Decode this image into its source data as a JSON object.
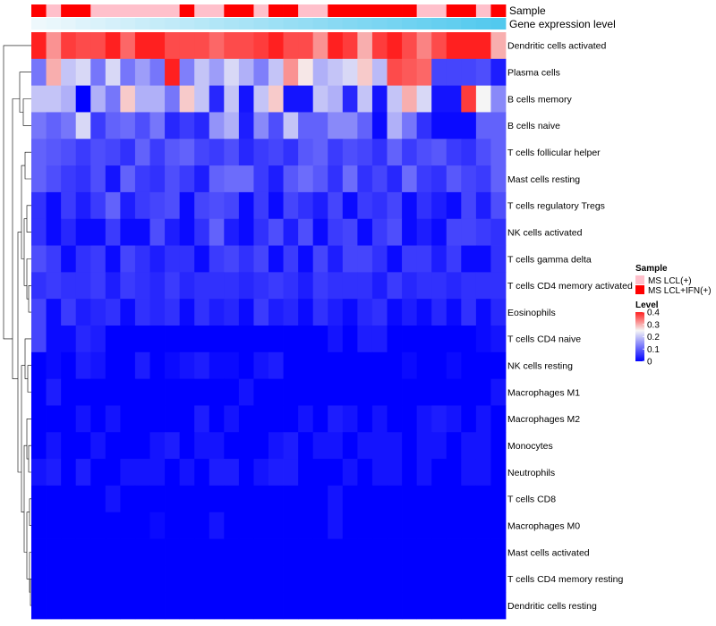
{
  "chart_data": {
    "type": "heatmap",
    "title": "",
    "annotations": [
      {
        "name": "Sample",
        "legend_title": "Sample",
        "legend_entries": [
          {
            "label": "MS LCL(+)",
            "color": "#ffc0cb"
          },
          {
            "label": "MS LCL+IFN(+)",
            "color": "#ff0000"
          }
        ],
        "values": [
          1,
          0,
          1,
          1,
          0,
          0,
          0,
          0,
          0,
          0,
          1,
          0,
          0,
          1,
          1,
          0,
          1,
          1,
          0,
          0,
          1,
          1,
          1,
          1,
          1,
          1,
          0,
          0,
          1,
          1,
          0,
          1
        ]
      },
      {
        "name": "Gene expression level",
        "color_low": "#eef8fc",
        "color_high": "#52c9ee",
        "values": [
          0.0,
          0.03,
          0.06,
          0.1,
          0.13,
          0.16,
          0.19,
          0.23,
          0.26,
          0.29,
          0.32,
          0.35,
          0.39,
          0.42,
          0.45,
          0.48,
          0.52,
          0.55,
          0.58,
          0.61,
          0.65,
          0.68,
          0.71,
          0.74,
          0.77,
          0.81,
          0.84,
          0.87,
          0.9,
          0.94,
          0.97,
          1.0
        ]
      }
    ],
    "rows": [
      "Dendritic cells activated",
      "Plasma cells",
      "B cells memory",
      "B cells naive",
      "T cells follicular helper",
      "Mast cells resting",
      "T cells regulatory  Tregs",
      "NK cells activated",
      "T cells gamma delta",
      "T cells CD4 memory activated",
      "Eosinophils",
      "T cells CD4 naive",
      "NK cells resting",
      "Macrophages M1",
      "Macrophages M2",
      "Monocytes",
      "Neutrophils",
      "T cells CD8",
      "Macrophages M0",
      "Mast cells activated",
      "T cells CD4 memory resting",
      "Dendritic cells resting"
    ],
    "values": [
      [
        0.4,
        0.32,
        0.38,
        0.37,
        0.37,
        0.4,
        0.35,
        0.4,
        0.4,
        0.37,
        0.37,
        0.37,
        0.35,
        0.37,
        0.37,
        0.38,
        0.4,
        0.37,
        0.37,
        0.32,
        0.4,
        0.38,
        0.3,
        0.38,
        0.4,
        0.37,
        0.33,
        0.37,
        0.4,
        0.4,
        0.4,
        0.3
      ],
      [
        0.12,
        0.3,
        0.2,
        0.22,
        0.12,
        0.22,
        0.12,
        0.16,
        0.12,
        0.4,
        0.13,
        0.2,
        0.16,
        0.22,
        0.18,
        0.13,
        0.2,
        0.32,
        0.26,
        0.18,
        0.2,
        0.22,
        0.28,
        0.19,
        0.37,
        0.36,
        0.35,
        0.07,
        0.07,
        0.07,
        0.08,
        0.03
      ],
      [
        0.2,
        0.2,
        0.18,
        0.0,
        0.18,
        0.12,
        0.28,
        0.18,
        0.18,
        0.12,
        0.28,
        0.2,
        0.04,
        0.2,
        0.02,
        0.2,
        0.28,
        0.02,
        0.02,
        0.2,
        0.18,
        0.04,
        0.2,
        0.02,
        0.2,
        0.3,
        0.22,
        0.02,
        0.02,
        0.38,
        0.25,
        0.14
      ],
      [
        0.12,
        0.1,
        0.12,
        0.22,
        0.06,
        0.1,
        0.11,
        0.08,
        0.12,
        0.04,
        0.06,
        0.04,
        0.15,
        0.18,
        0.03,
        0.14,
        0.08,
        0.2,
        0.1,
        0.1,
        0.14,
        0.14,
        0.1,
        0.01,
        0.18,
        0.12,
        0.05,
        0.01,
        0.01,
        0.01,
        0.1,
        0.1
      ],
      [
        0.1,
        0.09,
        0.08,
        0.06,
        0.08,
        0.07,
        0.05,
        0.1,
        0.06,
        0.09,
        0.1,
        0.07,
        0.06,
        0.08,
        0.04,
        0.06,
        0.07,
        0.05,
        0.09,
        0.1,
        0.06,
        0.08,
        0.07,
        0.05,
        0.1,
        0.06,
        0.08,
        0.09,
        0.06,
        0.05,
        0.08,
        0.1
      ],
      [
        0.1,
        0.08,
        0.06,
        0.05,
        0.08,
        0.02,
        0.1,
        0.06,
        0.05,
        0.08,
        0.06,
        0.03,
        0.1,
        0.11,
        0.11,
        0.06,
        0.03,
        0.09,
        0.11,
        0.09,
        0.05,
        0.11,
        0.05,
        0.07,
        0.04,
        0.11,
        0.06,
        0.05,
        0.09,
        0.07,
        0.06,
        0.1
      ],
      [
        0.05,
        0.01,
        0.06,
        0.03,
        0.06,
        0.1,
        0.03,
        0.06,
        0.07,
        0.08,
        0.01,
        0.07,
        0.08,
        0.07,
        0.01,
        0.06,
        0.01,
        0.07,
        0.05,
        0.03,
        0.07,
        0.01,
        0.06,
        0.05,
        0.07,
        0.01,
        0.05,
        0.03,
        0.01,
        0.07,
        0.03,
        0.08
      ],
      [
        0.05,
        0.01,
        0.04,
        0.01,
        0.01,
        0.06,
        0.01,
        0.01,
        0.08,
        0.03,
        0.01,
        0.05,
        0.1,
        0.03,
        0.01,
        0.05,
        0.08,
        0.03,
        0.08,
        0.01,
        0.06,
        0.07,
        0.01,
        0.06,
        0.08,
        0.01,
        0.03,
        0.01,
        0.07,
        0.07,
        0.06,
        0.05
      ],
      [
        0.08,
        0.06,
        0.01,
        0.05,
        0.06,
        0.01,
        0.07,
        0.05,
        0.03,
        0.05,
        0.05,
        0.01,
        0.06,
        0.07,
        0.05,
        0.07,
        0.01,
        0.06,
        0.01,
        0.07,
        0.03,
        0.07,
        0.07,
        0.05,
        0.01,
        0.06,
        0.06,
        0.03,
        0.06,
        0.01,
        0.01,
        0.05
      ],
      [
        0.05,
        0.06,
        0.05,
        0.05,
        0.06,
        0.03,
        0.06,
        0.05,
        0.04,
        0.06,
        0.04,
        0.05,
        0.05,
        0.05,
        0.04,
        0.05,
        0.06,
        0.05,
        0.03,
        0.06,
        0.05,
        0.05,
        0.05,
        0.03,
        0.06,
        0.04,
        0.05,
        0.05,
        0.04,
        0.05,
        0.05,
        0.05
      ],
      [
        0.07,
        0.01,
        0.06,
        0.03,
        0.04,
        0.05,
        0.01,
        0.05,
        0.04,
        0.05,
        0.01,
        0.05,
        0.03,
        0.04,
        0.01,
        0.06,
        0.03,
        0.04,
        0.01,
        0.05,
        0.03,
        0.01,
        0.04,
        0.05,
        0.01,
        0.03,
        0.01,
        0.04,
        0.01,
        0.05,
        0.01,
        0.04
      ],
      [
        0.07,
        0.01,
        0.01,
        0.04,
        0.03,
        0.0,
        0.0,
        0.0,
        0.0,
        0.0,
        0.0,
        0.0,
        0.0,
        0.0,
        0.0,
        0.0,
        0.0,
        0.0,
        0.0,
        0.0,
        0.02,
        0.0,
        0.03,
        0.03,
        0.0,
        0.0,
        0.0,
        0.0,
        0.0,
        0.0,
        0.01,
        0.02
      ],
      [
        0.0,
        0.01,
        0.0,
        0.03,
        0.02,
        0.0,
        0.0,
        0.03,
        0.0,
        0.01,
        0.02,
        0.03,
        0.01,
        0.01,
        0.0,
        0.02,
        0.03,
        0.0,
        0.0,
        0.0,
        0.0,
        0.0,
        0.0,
        0.0,
        0.0,
        0.01,
        0.0,
        0.0,
        0.01,
        0.0,
        0.0,
        0.0
      ],
      [
        0.0,
        0.03,
        0.0,
        0.0,
        0.0,
        0.0,
        0.0,
        0.0,
        0.0,
        0.0,
        0.0,
        0.0,
        0.0,
        0.0,
        0.02,
        0.0,
        0.0,
        0.0,
        0.0,
        0.0,
        0.0,
        0.0,
        0.0,
        0.0,
        0.0,
        0.0,
        0.0,
        0.0,
        0.0,
        0.0,
        0.0,
        0.02
      ],
      [
        0.0,
        0.0,
        0.0,
        0.02,
        0.0,
        0.02,
        0.0,
        0.0,
        0.0,
        0.0,
        0.0,
        0.03,
        0.0,
        0.02,
        0.0,
        0.0,
        0.0,
        0.0,
        0.02,
        0.0,
        0.03,
        0.02,
        0.0,
        0.02,
        0.0,
        0.0,
        0.02,
        0.03,
        0.02,
        0.0,
        0.02,
        0.0
      ],
      [
        0.0,
        0.02,
        0.0,
        0.0,
        0.02,
        0.0,
        0.0,
        0.0,
        0.02,
        0.03,
        0.0,
        0.02,
        0.02,
        0.0,
        0.0,
        0.0,
        0.02,
        0.03,
        0.0,
        0.02,
        0.02,
        0.0,
        0.02,
        0.02,
        0.02,
        0.0,
        0.02,
        0.02,
        0.0,
        0.02,
        0.02,
        0.0
      ],
      [
        0.02,
        0.03,
        0.0,
        0.03,
        0.0,
        0.0,
        0.02,
        0.02,
        0.02,
        0.0,
        0.02,
        0.0,
        0.03,
        0.03,
        0.0,
        0.02,
        0.03,
        0.03,
        0.0,
        0.0,
        0.0,
        0.02,
        0.0,
        0.02,
        0.02,
        0.0,
        0.02,
        0.0,
        0.0,
        0.02,
        0.02,
        0.0
      ],
      [
        0.0,
        0.0,
        0.0,
        0.0,
        0.0,
        0.02,
        0.0,
        0.0,
        0.0,
        0.0,
        0.0,
        0.0,
        0.0,
        0.0,
        0.0,
        0.0,
        0.0,
        0.0,
        0.0,
        0.0,
        0.02,
        0.0,
        0.0,
        0.0,
        0.0,
        0.0,
        0.0,
        0.0,
        0.0,
        0.0,
        0.0,
        0.0
      ],
      [
        0.0,
        0.0,
        0.0,
        0.0,
        0.0,
        0.0,
        0.0,
        0.0,
        0.01,
        0.0,
        0.0,
        0.0,
        0.02,
        0.0,
        0.0,
        0.0,
        0.0,
        0.0,
        0.0,
        0.0,
        0.02,
        0.0,
        0.0,
        0.0,
        0.0,
        0.0,
        0.0,
        0.0,
        0.0,
        0.0,
        0.0,
        0.0
      ],
      [
        0.0,
        0.0,
        0.0,
        0.0,
        0.0,
        0.0,
        0.0,
        0.0,
        0.0,
        0.0,
        0.0,
        0.0,
        0.0,
        0.0,
        0.0,
        0.0,
        0.0,
        0.0,
        0.0,
        0.0,
        0.0,
        0.0,
        0.0,
        0.0,
        0.0,
        0.0,
        0.0,
        0.0,
        0.0,
        0.0,
        0.0,
        0.0
      ],
      [
        0.0,
        0.0,
        0.0,
        0.0,
        0.0,
        0.0,
        0.0,
        0.0,
        0.0,
        0.0,
        0.0,
        0.0,
        0.0,
        0.0,
        0.0,
        0.0,
        0.0,
        0.0,
        0.0,
        0.0,
        0.0,
        0.0,
        0.0,
        0.0,
        0.0,
        0.0,
        0.0,
        0.0,
        0.0,
        0.0,
        0.0,
        0.0
      ],
      [
        0.0,
        0.0,
        0.0,
        0.0,
        0.0,
        0.0,
        0.0,
        0.0,
        0.0,
        0.0,
        0.0,
        0.0,
        0.0,
        0.0,
        0.0,
        0.0,
        0.0,
        0.0,
        0.0,
        0.0,
        0.0,
        0.0,
        0.0,
        0.0,
        0.0,
        0.0,
        0.0,
        0.0,
        0.0,
        0.0,
        0.0,
        0.0
      ]
    ],
    "color_scale": {
      "low": "#0000ff",
      "mid": "#f5f5f5",
      "high": "#ff2020",
      "min": 0,
      "mid_value": 0.25,
      "max": 0.4,
      "legend_title": "Level",
      "ticks": [
        "0.4",
        "0.3",
        "0.2",
        "0.1",
        "0"
      ],
      "tick_values": [
        0.4,
        0.3,
        0.2,
        0.1,
        0
      ]
    },
    "dendrogram": {
      "side": "left",
      "leaf_order": [
        0,
        1,
        2,
        3,
        4,
        5,
        6,
        7,
        8,
        9,
        10,
        11,
        12,
        13,
        14,
        15,
        16,
        17,
        18,
        19,
        20,
        21
      ]
    }
  }
}
